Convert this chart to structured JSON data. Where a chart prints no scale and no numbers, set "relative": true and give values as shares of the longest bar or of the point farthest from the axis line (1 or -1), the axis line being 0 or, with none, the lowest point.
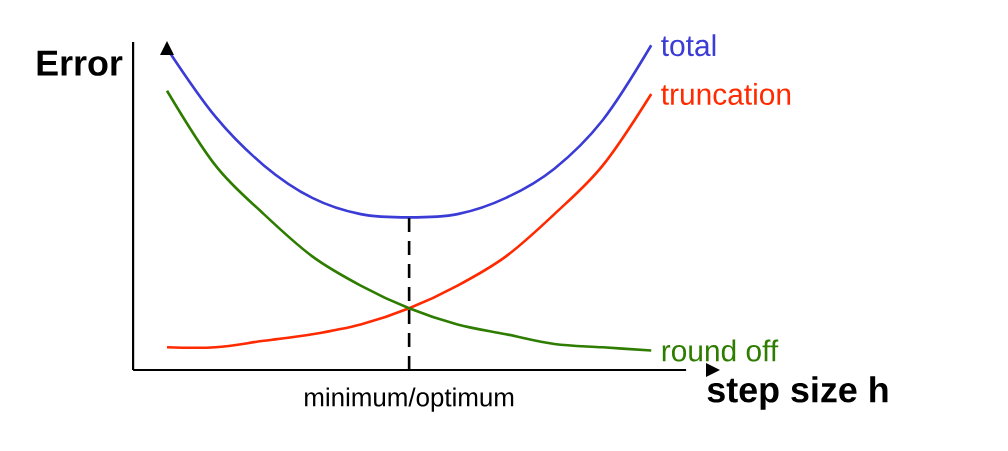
{
  "chart_data": {
    "type": "line",
    "relative": true,
    "xlabel": "step size h",
    "ylabel": "Error",
    "categories": [
      null,
      null,
      null,
      null,
      null,
      null,
      null,
      null,
      null,
      null,
      null
    ],
    "series": [
      {
        "name": "total",
        "color": "#3b3bd6",
        "values": [
          0.99,
          0.78,
          0.63,
          0.53,
          0.48,
          0.47,
          0.48,
          0.53,
          0.62,
          0.77,
          1.0
        ]
      },
      {
        "name": "truncation",
        "color": "#ff2a00",
        "values": [
          0.07,
          0.07,
          0.09,
          0.11,
          0.14,
          0.19,
          0.26,
          0.35,
          0.48,
          0.63,
          0.85
        ]
      },
      {
        "name": "round off",
        "color": "#2e7d00",
        "values": [
          0.86,
          0.63,
          0.48,
          0.35,
          0.26,
          0.19,
          0.14,
          0.11,
          0.08,
          0.07,
          0.06
        ]
      }
    ],
    "annotations": [
      "minimum/optimum"
    ],
    "legend": false,
    "marker": "none",
    "line_style": "solid"
  }
}
